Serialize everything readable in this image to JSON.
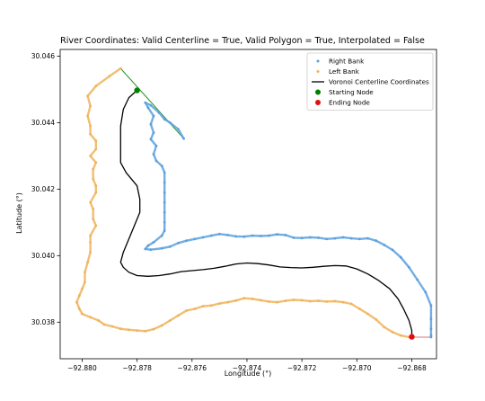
{
  "chart_data": {
    "type": "scatter",
    "title": "River Coordinates: Valid Centerline = True, Valid Polygon = True, Interpolated = False",
    "xlabel": "Longitude (°)",
    "ylabel": "Latitude (°)",
    "xlim": [
      -92.8808,
      -92.8671
    ],
    "ylim": [
      30.0369,
      30.0462
    ],
    "xticks": [
      -92.88,
      -92.878,
      -92.876,
      -92.874,
      -92.872,
      -92.87,
      -92.868
    ],
    "xtick_labels": [
      "−92.880",
      "−92.878",
      "−92.876",
      "−92.874",
      "−92.872",
      "−92.870",
      "−92.868"
    ],
    "yticks": [
      30.038,
      30.04,
      30.042,
      30.044,
      30.046
    ],
    "ytick_labels": [
      "30.038",
      "30.040",
      "30.042",
      "30.044",
      "30.046"
    ],
    "grid": false,
    "legend_position": "top-right",
    "legend": [
      {
        "label": "Right Bank",
        "marker": "dot",
        "color": "#5aa0de"
      },
      {
        "label": "Left Bank",
        "marker": "dot",
        "color": "#f0b35a"
      },
      {
        "label": "Voronoi Centerline Coordinates",
        "marker": "line",
        "color": "#000000"
      },
      {
        "label": "Starting Node",
        "marker": "circle",
        "color": "#008000"
      },
      {
        "label": "Ending Node",
        "marker": "circle",
        "color": "#e01010"
      }
    ],
    "series": [
      {
        "name": "Right Bank",
        "style": "points",
        "color": "#5aa0de",
        "points": [
          [
            -92.8763,
            30.04352
          ],
          [
            -92.8765,
            30.0438
          ],
          [
            -92.8768,
            30.044
          ],
          [
            -92.877,
            30.0441
          ],
          [
            -92.8772,
            30.0443
          ],
          [
            -92.8775,
            30.04452
          ],
          [
            -92.8777,
            30.0446
          ],
          [
            -92.8776,
            30.04445
          ],
          [
            -92.8774,
            30.0442
          ],
          [
            -92.8775,
            30.04395
          ],
          [
            -92.8774,
            30.0437
          ],
          [
            -92.8775,
            30.0435
          ],
          [
            -92.8773,
            30.0433
          ],
          [
            -92.8774,
            30.04305
          ],
          [
            -92.8773,
            30.04285
          ],
          [
            -92.8771,
            30.0427
          ],
          [
            -92.877,
            30.0425
          ],
          [
            -92.877,
            30.0422
          ],
          [
            -92.877,
            30.0419
          ],
          [
            -92.877,
            30.0416
          ],
          [
            -92.877,
            30.0413
          ],
          [
            -92.877,
            30.041
          ],
          [
            -92.877,
            30.04075
          ],
          [
            -92.8771,
            30.0406
          ],
          [
            -92.8774,
            30.0404
          ],
          [
            -92.8776,
            30.0403
          ],
          [
            -92.8777,
            30.0402
          ],
          [
            -92.8775,
            30.04018
          ],
          [
            -92.8771,
            30.04022
          ],
          [
            -92.8768,
            30.04027
          ],
          [
            -92.8765,
            30.04038
          ],
          [
            -92.8762,
            30.04045
          ],
          [
            -92.8759,
            30.0405
          ],
          [
            -92.8756,
            30.04055
          ],
          [
            -92.8753,
            30.0406
          ],
          [
            -92.875,
            30.04065
          ],
          [
            -92.8747,
            30.04062
          ],
          [
            -92.8744,
            30.04058
          ],
          [
            -92.8741,
            30.04057
          ],
          [
            -92.8738,
            30.0406
          ],
          [
            -92.8735,
            30.04059
          ],
          [
            -92.8732,
            30.0406
          ],
          [
            -92.8729,
            30.04064
          ],
          [
            -92.8726,
            30.04062
          ],
          [
            -92.8723,
            30.04054
          ],
          [
            -92.872,
            30.04053
          ],
          [
            -92.8717,
            30.04055
          ],
          [
            -92.8714,
            30.04054
          ],
          [
            -92.8711,
            30.0405
          ],
          [
            -92.8708,
            30.04052
          ],
          [
            -92.8705,
            30.04055
          ],
          [
            -92.8702,
            30.04052
          ],
          [
            -92.8699,
            30.0405
          ],
          [
            -92.8696,
            30.04052
          ],
          [
            -92.8693,
            30.04045
          ],
          [
            -92.869,
            30.04032
          ],
          [
            -92.8687,
            30.04017
          ],
          [
            -92.8684,
            30.03995
          ],
          [
            -92.8681,
            30.03965
          ],
          [
            -92.8678,
            30.03928
          ],
          [
            -92.8675,
            30.0389
          ],
          [
            -92.8673,
            30.0385
          ],
          [
            -92.8673,
            30.0381
          ],
          [
            -92.8673,
            30.0378
          ],
          [
            -92.8673,
            30.0376
          ],
          [
            -92.8673,
            30.03755
          ]
        ]
      },
      {
        "name": "Left Bank",
        "style": "points",
        "color": "#f0b35a",
        "points": [
          [
            -92.8786,
            30.04563
          ],
          [
            -92.879,
            30.0454
          ],
          [
            -92.8795,
            30.0451
          ],
          [
            -92.8798,
            30.0448
          ],
          [
            -92.8797,
            30.0445
          ],
          [
            -92.8798,
            30.0442
          ],
          [
            -92.8797,
            30.0439
          ],
          [
            -92.8797,
            30.04365
          ],
          [
            -92.8795,
            30.04345
          ],
          [
            -92.8795,
            30.0432
          ],
          [
            -92.8797,
            30.043
          ],
          [
            -92.8795,
            30.0428
          ],
          [
            -92.8796,
            30.0426
          ],
          [
            -92.8796,
            30.0423
          ],
          [
            -92.8795,
            30.0421
          ],
          [
            -92.8795,
            30.0419
          ],
          [
            -92.8797,
            30.0416
          ],
          [
            -92.8796,
            30.0414
          ],
          [
            -92.8796,
            30.0411
          ],
          [
            -92.8795,
            30.0409
          ],
          [
            -92.8797,
            30.0406
          ],
          [
            -92.8797,
            30.0404
          ],
          [
            -92.8797,
            30.0401
          ],
          [
            -92.8798,
            30.0398
          ],
          [
            -92.8799,
            30.0395
          ],
          [
            -92.8799,
            30.0392
          ],
          [
            -92.88,
            30.039
          ],
          [
            -92.8801,
            30.0388
          ],
          [
            -92.8802,
            30.0386
          ],
          [
            -92.8801,
            30.0384
          ],
          [
            -92.88,
            30.03825
          ],
          [
            -92.8797,
            30.03815
          ],
          [
            -92.8794,
            30.03805
          ],
          [
            -92.8792,
            30.03793
          ],
          [
            -92.8789,
            30.03787
          ],
          [
            -92.8786,
            30.0378
          ],
          [
            -92.8783,
            30.03777
          ],
          [
            -92.878,
            30.03775
          ],
          [
            -92.8777,
            30.03773
          ],
          [
            -92.8774,
            30.03779
          ],
          [
            -92.8771,
            30.0379
          ],
          [
            -92.8768,
            30.03805
          ],
          [
            -92.8765,
            30.0382
          ],
          [
            -92.8762,
            30.03835
          ],
          [
            -92.8759,
            30.0384
          ],
          [
            -92.8756,
            30.03848
          ],
          [
            -92.8753,
            30.0385
          ],
          [
            -92.875,
            30.03856
          ],
          [
            -92.8747,
            30.0386
          ],
          [
            -92.8744,
            30.03865
          ],
          [
            -92.8741,
            30.03872
          ],
          [
            -92.8738,
            30.0387
          ],
          [
            -92.8735,
            30.03866
          ],
          [
            -92.8732,
            30.03862
          ],
          [
            -92.8729,
            30.0386
          ],
          [
            -92.8726,
            30.03864
          ],
          [
            -92.8723,
            30.03867
          ],
          [
            -92.872,
            30.03866
          ],
          [
            -92.8717,
            30.03863
          ],
          [
            -92.8714,
            30.03864
          ],
          [
            -92.8711,
            30.03862
          ],
          [
            -92.8708,
            30.03863
          ],
          [
            -92.8705,
            30.0386
          ],
          [
            -92.8702,
            30.03855
          ],
          [
            -92.8699,
            30.0384
          ],
          [
            -92.8696,
            30.03825
          ],
          [
            -92.8693,
            30.03808
          ],
          [
            -92.869,
            30.03785
          ],
          [
            -92.8687,
            30.0377
          ],
          [
            -92.8684,
            30.0376
          ],
          [
            -92.8681,
            30.03755
          ]
        ]
      },
      {
        "name": "Voronoi Centerline Coordinates",
        "style": "line",
        "color": "#000000",
        "points": [
          [
            -92.878,
            30.04497
          ],
          [
            -92.8783,
            30.04475
          ],
          [
            -92.8785,
            30.0444
          ],
          [
            -92.8786,
            30.0439
          ],
          [
            -92.8786,
            30.0433
          ],
          [
            -92.8786,
            30.0428
          ],
          [
            -92.8784,
            30.0425
          ],
          [
            -92.8782,
            30.0423
          ],
          [
            -92.878,
            30.0421
          ],
          [
            -92.8779,
            30.0417
          ],
          [
            -92.8779,
            30.0413
          ],
          [
            -92.8781,
            30.0409
          ],
          [
            -92.8783,
            30.0405
          ],
          [
            -92.8785,
            30.0401
          ],
          [
            -92.8786,
            30.0398
          ],
          [
            -92.8785,
            30.03965
          ],
          [
            -92.8783,
            30.0395
          ],
          [
            -92.878,
            30.0394
          ],
          [
            -92.8776,
            30.03938
          ],
          [
            -92.8772,
            30.0394
          ],
          [
            -92.8768,
            30.03945
          ],
          [
            -92.8764,
            30.03952
          ],
          [
            -92.876,
            30.03955
          ],
          [
            -92.8756,
            30.03958
          ],
          [
            -92.8752,
            30.03962
          ],
          [
            -92.8748,
            30.03968
          ],
          [
            -92.8744,
            30.03975
          ],
          [
            -92.874,
            30.03978
          ],
          [
            -92.8736,
            30.03976
          ],
          [
            -92.8732,
            30.03972
          ],
          [
            -92.8728,
            30.03966
          ],
          [
            -92.8724,
            30.03964
          ],
          [
            -92.872,
            30.03963
          ],
          [
            -92.8716,
            30.03965
          ],
          [
            -92.8712,
            30.03968
          ],
          [
            -92.8708,
            30.0397
          ],
          [
            -92.8704,
            30.03969
          ],
          [
            -92.87,
            30.0396
          ],
          [
            -92.8696,
            30.03945
          ],
          [
            -92.8692,
            30.03925
          ],
          [
            -92.8688,
            30.039
          ],
          [
            -92.8685,
            30.0387
          ],
          [
            -92.8683,
            30.0384
          ],
          [
            -92.8681,
            30.03805
          ],
          [
            -92.868,
            30.03775
          ],
          [
            -92.868,
            30.03756
          ]
        ]
      },
      {
        "name": "Boundary Segments",
        "style": "line",
        "color": "#2e9b2e",
        "points": [
          [
            -92.8786,
            30.04563
          ],
          [
            -92.8763,
            30.04352
          ]
        ]
      },
      {
        "name": "Boundary End Segment",
        "style": "line",
        "color": "#e07070",
        "points": [
          [
            -92.8681,
            30.03755
          ],
          [
            -92.8673,
            30.03755
          ]
        ]
      },
      {
        "name": "Starting Node",
        "style": "marker",
        "color": "#008000",
        "points": [
          [
            -92.878,
            30.04497
          ]
        ]
      },
      {
        "name": "Ending Node",
        "style": "marker",
        "color": "#e01010",
        "points": [
          [
            -92.868,
            30.03756
          ]
        ]
      }
    ]
  }
}
